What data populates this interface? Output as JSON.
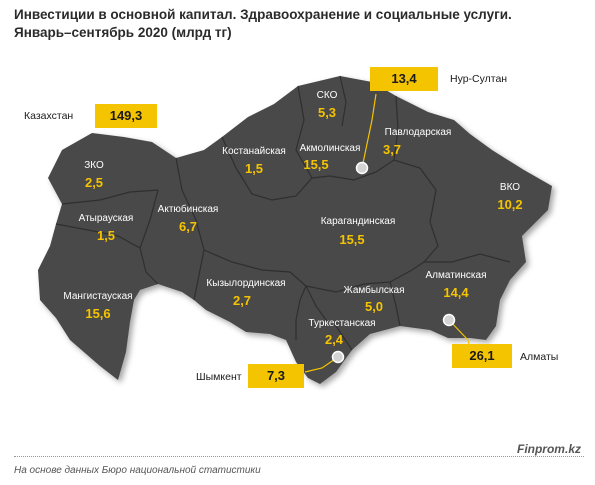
{
  "title_line1": "Инвестиции в основной капитал. Здравоохранение и социальные услуги.",
  "title_line2": "Январь–сентябрь 2020  (млрд тг)",
  "colors": {
    "map_fill": "#4a4a4a",
    "border": "#2f2f2f",
    "accent": "#f5c400",
    "region_label": "#ffffff"
  },
  "national": {
    "label": "Казахстан",
    "value": "149,3"
  },
  "regions": {
    "zko": {
      "name": "ЗКО",
      "value": "2,5"
    },
    "atyrau": {
      "name": "Атырауская",
      "value": "1,5"
    },
    "mangistau": {
      "name": "Мангистауская",
      "value": "15,6"
    },
    "aktobe": {
      "name": "Актюбинская",
      "value": "6,7"
    },
    "kostanay": {
      "name": "Костанайская",
      "value": "1,5"
    },
    "sko": {
      "name": "СКО",
      "value": "5,3"
    },
    "akmola": {
      "name": "Акмолинская",
      "value": "15,5"
    },
    "pavlodar": {
      "name": "Павлодарская",
      "value": "3,7"
    },
    "vko": {
      "name": "ВКО",
      "value": "10,2"
    },
    "karaganda": {
      "name": "Карагандинская",
      "value": "15,5"
    },
    "kyzylorda": {
      "name": "Кызылординская",
      "value": "2,7"
    },
    "zhambyl": {
      "name": "Жамбылская",
      "value": "5,0"
    },
    "almaty_reg": {
      "name": "Алматинская",
      "value": "14,4"
    },
    "turkestan": {
      "name": "Туркестанская",
      "value": "2,4"
    }
  },
  "cities": {
    "nursultan": {
      "name": "Нур-Султан",
      "value": "13,4"
    },
    "almaty": {
      "name": "Алматы",
      "value": "26,1"
    },
    "shymkent": {
      "name": "Шымкент",
      "value": "7,3"
    }
  },
  "source": "На основе данных Бюро национальной статистики",
  "brand": "Finprom.kz"
}
